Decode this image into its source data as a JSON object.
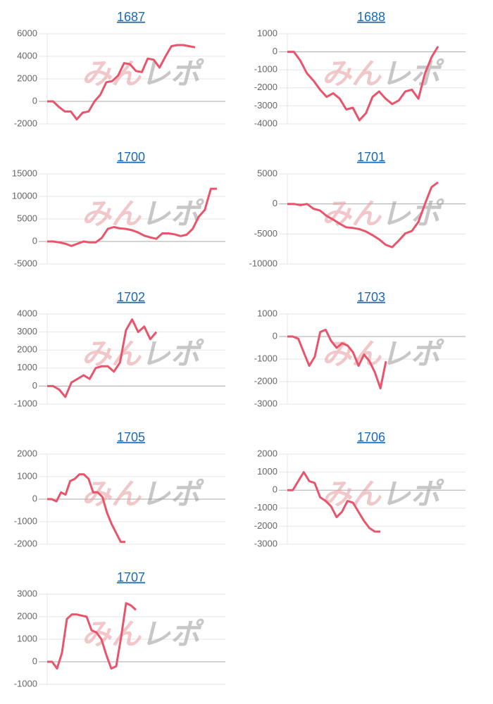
{
  "watermark": "みんレポ",
  "chart_data": [
    {
      "type": "line",
      "title": "1687",
      "color": "#e9546b",
      "ylim": [
        -2000,
        6000
      ],
      "yticks": [
        -2000,
        0,
        2000,
        4000,
        6000
      ],
      "grid": true,
      "values": [
        0,
        0,
        -500,
        -900,
        -900,
        -1600,
        -1000,
        -900,
        0,
        600,
        1700,
        1800,
        2300,
        3400,
        3300,
        2700,
        2600,
        3800,
        3700,
        3000,
        4000,
        4900,
        5000,
        5000,
        4900,
        4800
      ]
    },
    {
      "type": "line",
      "title": "1688",
      "color": "#e9546b",
      "ylim": [
        -4000,
        1000
      ],
      "yticks": [
        -4000,
        -3000,
        -2000,
        -1000,
        0,
        1000
      ],
      "grid": true,
      "values": [
        0,
        0,
        -500,
        -1200,
        -1600,
        -2100,
        -2500,
        -2300,
        -2600,
        -3200,
        -3100,
        -3800,
        -3400,
        -2500,
        -2200,
        -2600,
        -2900,
        -2700,
        -2200,
        -2100,
        -2600,
        -1200,
        -300,
        300
      ]
    },
    {
      "type": "line",
      "title": "1700",
      "color": "#e9546b",
      "ylim": [
        -5000,
        15000
      ],
      "yticks": [
        -5000,
        0,
        5000,
        10000,
        15000
      ],
      "grid": true,
      "values": [
        0,
        0,
        -200,
        -500,
        -1000,
        -500,
        0,
        -200,
        -200,
        800,
        2800,
        3200,
        2900,
        2800,
        2500,
        2000,
        1300,
        900,
        600,
        1800,
        1800,
        1600,
        1200,
        1500,
        2800,
        5500,
        7000,
        11700,
        11700
      ]
    },
    {
      "type": "line",
      "title": "1701",
      "color": "#e9546b",
      "ylim": [
        -10000,
        5000
      ],
      "yticks": [
        -10000,
        -5000,
        0,
        5000
      ],
      "grid": true,
      "values": [
        0,
        0,
        -200,
        0,
        -800,
        -1100,
        -2000,
        -2600,
        -3300,
        -3900,
        -4000,
        -4200,
        -4600,
        -5200,
        -5900,
        -6800,
        -7200,
        -6100,
        -4900,
        -4500,
        -3000,
        0,
        2800,
        3600
      ]
    },
    {
      "type": "line",
      "title": "1702",
      "color": "#e9546b",
      "ylim": [
        -1000,
        4000
      ],
      "yticks": [
        -1000,
        0,
        1000,
        2000,
        3000,
        4000
      ],
      "grid": true,
      "values": [
        0,
        0,
        -200,
        -600,
        200,
        400,
        600,
        400,
        1000,
        1100,
        1100,
        800,
        1300,
        3100,
        3700,
        3000,
        3300,
        2600,
        3000
      ]
    },
    {
      "type": "line",
      "title": "1703",
      "color": "#e9546b",
      "ylim": [
        -3000,
        1000
      ],
      "yticks": [
        -3000,
        -2000,
        -1000,
        0,
        1000
      ],
      "grid": true,
      "values": [
        0,
        0,
        -100,
        -700,
        -1300,
        -900,
        200,
        300,
        -200,
        -500,
        -300,
        -400,
        -700,
        -1300,
        -800,
        -1100,
        -1600,
        -2300,
        -1100
      ]
    },
    {
      "type": "line",
      "title": "1705",
      "color": "#e9546b",
      "ylim": [
        -2000,
        2000
      ],
      "yticks": [
        -2000,
        -1000,
        0,
        1000,
        2000
      ],
      "grid": true,
      "values": [
        0,
        0,
        -100,
        300,
        200,
        800,
        900,
        1100,
        1100,
        900,
        300,
        300,
        100,
        -600,
        -1100,
        -1500,
        -1900,
        -1900
      ]
    },
    {
      "type": "line",
      "title": "1706",
      "color": "#e9546b",
      "ylim": [
        -3000,
        2000
      ],
      "yticks": [
        -3000,
        -2000,
        -1000,
        0,
        1000,
        2000
      ],
      "grid": true,
      "values": [
        0,
        0,
        500,
        1000,
        500,
        400,
        -400,
        -600,
        -900,
        -1500,
        -1200,
        -600,
        -700,
        -1200,
        -1700,
        -2100,
        -2300,
        -2300
      ]
    },
    {
      "type": "line",
      "title": "1707",
      "color": "#e9546b",
      "ylim": [
        -1000,
        3000
      ],
      "yticks": [
        -1000,
        0,
        1000,
        2000,
        3000
      ],
      "grid": true,
      "values": [
        0,
        0,
        -300,
        400,
        1900,
        2100,
        2100,
        2050,
        2000,
        1400,
        1300,
        1000,
        300,
        -300,
        -200,
        1100,
        2600,
        2500,
        2300
      ]
    }
  ]
}
